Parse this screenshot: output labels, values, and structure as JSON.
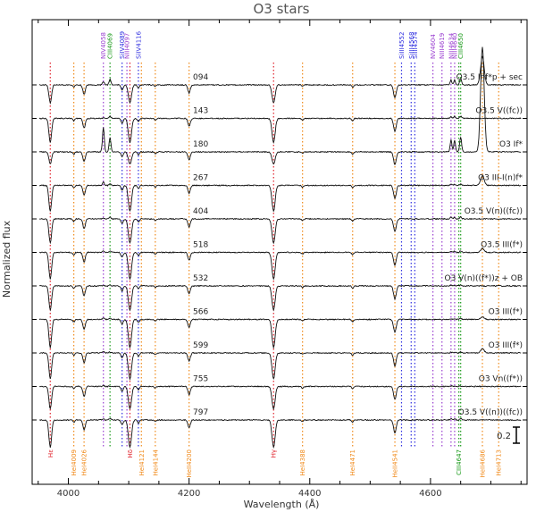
{
  "chart_data": {
    "type": "line",
    "title": "O3 stars",
    "xlabel": "Wavelength (Å)",
    "ylabel": "Normalized flux",
    "xlim": [
      3940,
      4760
    ],
    "x_ticks": [
      {
        "value": 4000,
        "label": "4000"
      },
      {
        "value": 4200,
        "label": "4200"
      },
      {
        "value": 4400,
        "label": "4400"
      },
      {
        "value": 4600,
        "label": "4600"
      }
    ],
    "scale_bar": {
      "label": "0.2",
      "value": 0.2
    },
    "series": [
      {
        "id": "094",
        "type": "O3.5 Inf*p + sec",
        "emission_4686": 0.35,
        "niv": 0.04,
        "ciii": 0.12,
        "balmer_depth": 0.22
      },
      {
        "id": "143",
        "type": "O3.5 V((fc))",
        "emission_4686": 0.0,
        "niv": 0.01,
        "ciii": 0.05,
        "balmer_depth": 0.3
      },
      {
        "id": "180",
        "type": "O3 If*",
        "emission_4686": 1.3,
        "niv": 0.3,
        "ciii": 0.3,
        "balmer_depth": 0.15
      },
      {
        "id": "267",
        "type": "O3 III-I(n)f*",
        "emission_4686": 0.12,
        "niv": 0.04,
        "ciii": 0.03,
        "balmer_depth": 0.32
      },
      {
        "id": "404",
        "type": "O3.5 V(n)((fc))",
        "emission_4686": 0.0,
        "niv": 0.01,
        "ciii": 0.04,
        "balmer_depth": 0.3
      },
      {
        "id": "518",
        "type": "O3.5 III(f*)",
        "emission_4686": 0.05,
        "niv": 0.02,
        "ciii": 0.03,
        "balmer_depth": 0.33
      },
      {
        "id": "532",
        "type": "O3 V(n)((f*))z + OB",
        "emission_4686": 0.0,
        "niv": 0.01,
        "ciii": 0.02,
        "balmer_depth": 0.3
      },
      {
        "id": "566",
        "type": "O3 III(f*)",
        "emission_4686": 0.03,
        "niv": 0.02,
        "ciii": 0.02,
        "balmer_depth": 0.35
      },
      {
        "id": "599",
        "type": "O3 III(f*)",
        "emission_4686": 0.05,
        "niv": 0.02,
        "ciii": 0.02,
        "balmer_depth": 0.32
      },
      {
        "id": "755",
        "type": "O3 Vn((f*))",
        "emission_4686": 0.0,
        "niv": 0.01,
        "ciii": 0.01,
        "balmer_depth": 0.28
      },
      {
        "id": "797",
        "type": "O3.5 V((n))((fc))",
        "emission_4686": 0.0,
        "niv": 0.01,
        "ciii": 0.03,
        "balmer_depth": 0.34
      }
    ],
    "top_lines": [
      {
        "label": "NIV4058",
        "wl": 4058,
        "color": "#9a3fd0"
      },
      {
        "label": "CIII4069",
        "wl": 4069,
        "color": "#1a9a1a"
      },
      {
        "label": "SiIV4089",
        "wl": 4089,
        "color": "#3030e0"
      },
      {
        "label": "NIII4097",
        "wl": 4097,
        "color": "#9a3fd0"
      },
      {
        "label": "SiIV4116",
        "wl": 4116,
        "color": "#3030e0"
      },
      {
        "label": "SiIII4552",
        "wl": 4552,
        "color": "#3030e0"
      },
      {
        "label": "SiIII4568",
        "wl": 4568,
        "color": "#3030e0"
      },
      {
        "label": "SiIII4574",
        "wl": 4574,
        "color": "#3030e0"
      },
      {
        "label": "NV4604",
        "wl": 4604,
        "color": "#9a3fd0"
      },
      {
        "label": "NIII4619",
        "wl": 4619,
        "color": "#9a3fd0"
      },
      {
        "label": "NIII4634",
        "wl": 4634,
        "color": "#9a3fd0"
      },
      {
        "label": "NIII4640",
        "wl": 4640,
        "color": "#9a3fd0"
      },
      {
        "label": "CIII4650",
        "wl": 4650,
        "color": "#1a9a1a"
      }
    ],
    "bottom_lines": [
      {
        "label": "Hε",
        "wl": 3970,
        "color": "#e0202a"
      },
      {
        "label": "HeI4009",
        "wl": 4009,
        "color": "#f08a1a"
      },
      {
        "label": "HeI4026",
        "wl": 4026,
        "color": "#f08a1a"
      },
      {
        "label": "Hδ",
        "wl": 4102,
        "color": "#e0202a"
      },
      {
        "label": "HeI4121",
        "wl": 4121,
        "color": "#f08a1a"
      },
      {
        "label": "HeI4144",
        "wl": 4144,
        "color": "#f08a1a"
      },
      {
        "label": "HeII4200",
        "wl": 4200,
        "color": "#f08a1a"
      },
      {
        "label": "Hγ",
        "wl": 4340,
        "color": "#e0202a"
      },
      {
        "label": "HeI4388",
        "wl": 4388,
        "color": "#f08a1a"
      },
      {
        "label": "HeI4471",
        "wl": 4471,
        "color": "#f08a1a"
      },
      {
        "label": "HeII4541",
        "wl": 4541,
        "color": "#f08a1a"
      },
      {
        "label": "CIII4647",
        "wl": 4647,
        "color": "#1a9a1a"
      },
      {
        "label": "HeII4686",
        "wl": 4686,
        "color": "#f08a1a"
      },
      {
        "label": "HeI4713",
        "wl": 4713,
        "color": "#f08a1a"
      }
    ],
    "grid": false
  }
}
